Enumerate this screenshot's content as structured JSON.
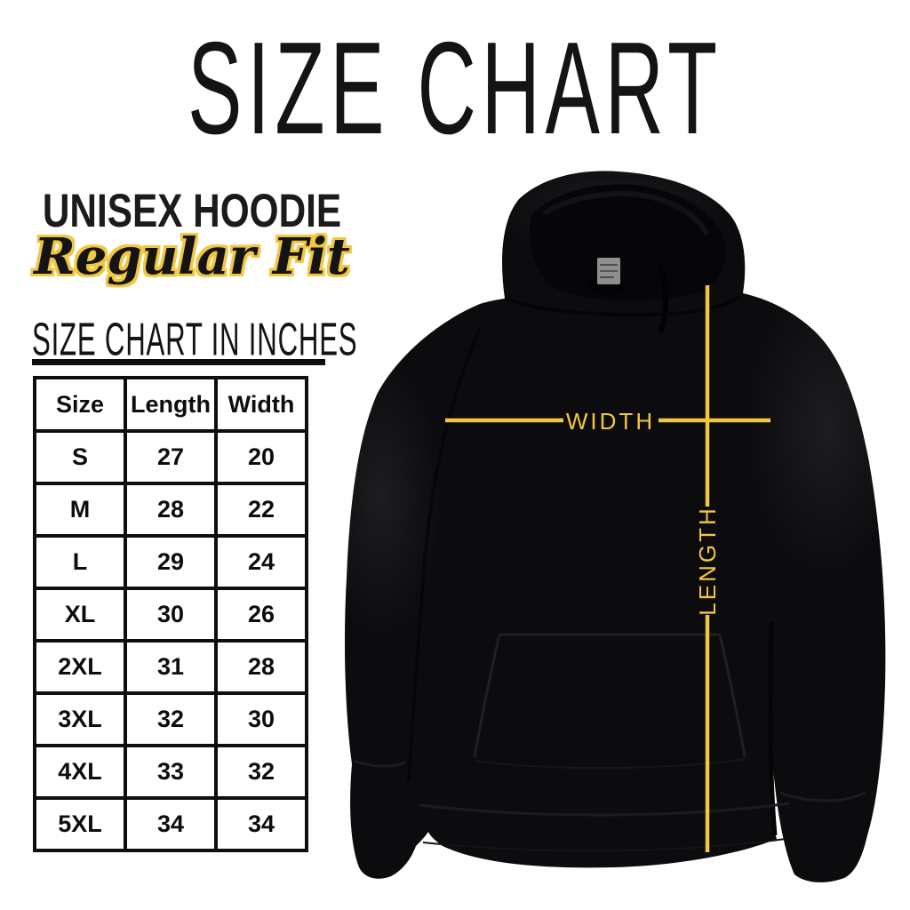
{
  "title": "SIZE CHART",
  "product": {
    "name": "UNISEX HOODIE",
    "fit": "Regular Fit"
  },
  "table_heading": "SIZE CHART IN INCHES",
  "size_table": {
    "columns": [
      "Size",
      "Length",
      "Width"
    ],
    "rows": [
      [
        "S",
        "27",
        "20"
      ],
      [
        "M",
        "28",
        "22"
      ],
      [
        "L",
        "29",
        "24"
      ],
      [
        "XL",
        "30",
        "26"
      ],
      [
        "2XL",
        "31",
        "28"
      ],
      [
        "3XL",
        "32",
        "30"
      ],
      [
        "4XL",
        "33",
        "32"
      ],
      [
        "5XL",
        "34",
        "34"
      ]
    ]
  },
  "measurements": {
    "width_label": "WIDTH",
    "length_label": "LENGTH"
  },
  "colors": {
    "accent_yellow": "#F2C640",
    "ink_black": "#141414",
    "hoodie_black": "#0c0c0f"
  }
}
